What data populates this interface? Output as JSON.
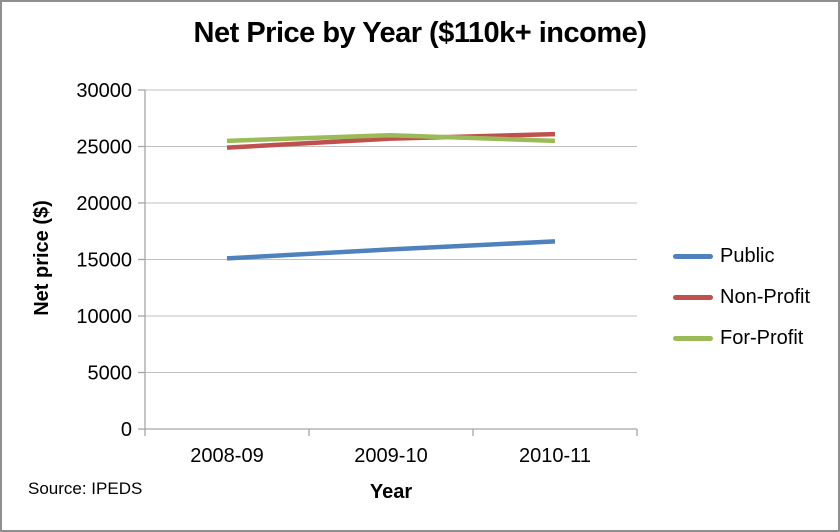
{
  "window": {
    "background": "#ffffff",
    "border_color": "#8f8f8f"
  },
  "source_note": "Source: IPEDS",
  "chart_data": {
    "type": "line",
    "title": "Net Price by Year ($110k+ income)",
    "xlabel": "Year",
    "ylabel": "Net price ($)",
    "categories": [
      "2008-09",
      "2009-10",
      "2010-11"
    ],
    "series": [
      {
        "name": "Public",
        "color": "#4F81BD",
        "values": [
          15100,
          15900,
          16600
        ]
      },
      {
        "name": "Non-Profit",
        "color": "#C0504D",
        "values": [
          24900,
          25700,
          26100
        ]
      },
      {
        "name": "For-Profit",
        "color": "#9BBB59",
        "values": [
          25500,
          26000,
          25500
        ]
      }
    ],
    "ylim": [
      0,
      30000
    ],
    "ytick_step": 5000,
    "ytick_labels": [
      "0",
      "5000",
      "10000",
      "15000",
      "20000",
      "25000",
      "30000"
    ],
    "grid": true,
    "gridline_color": "#C0C0C0",
    "axis_color": "#A6A6A6",
    "line_width": 4.5,
    "legend_position": "right"
  }
}
